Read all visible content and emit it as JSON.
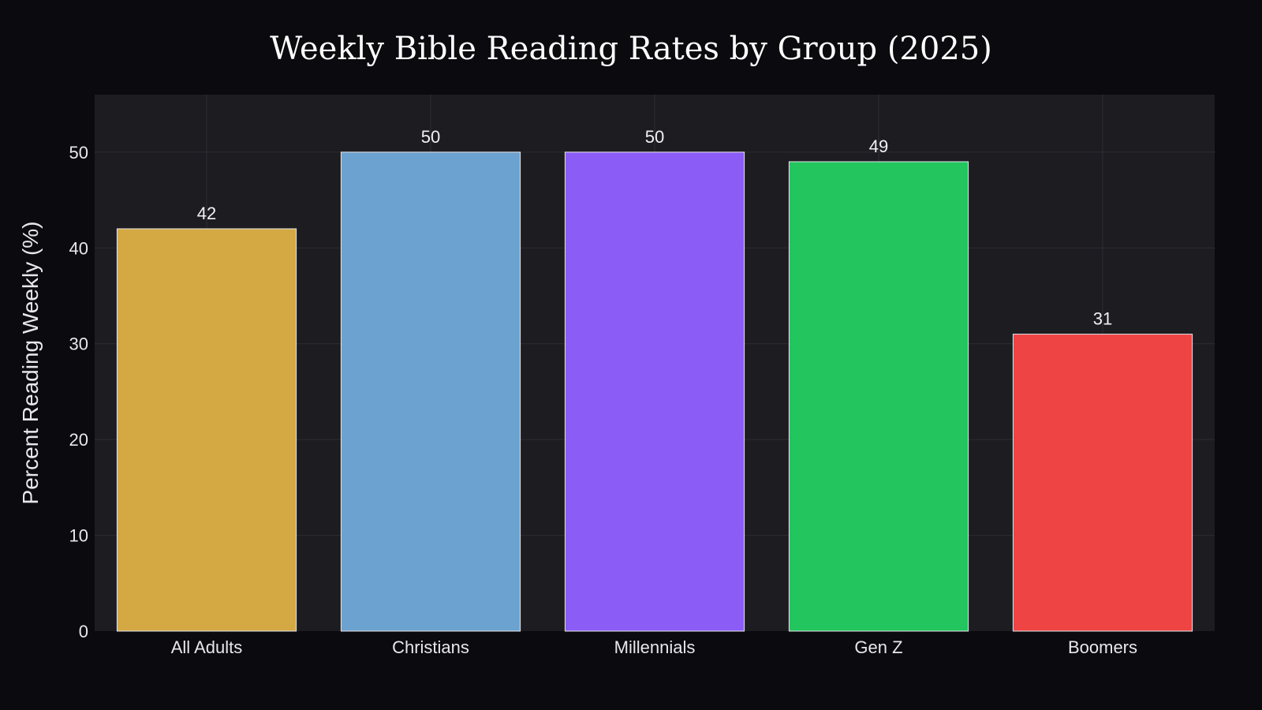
{
  "chart_data": {
    "type": "bar",
    "title": "Weekly Bible Reading Rates by Group (2025)",
    "xlabel": "",
    "ylabel": "Percent Reading Weekly (%)",
    "categories": [
      "All Adults",
      "Christians",
      "Millennials",
      "Gen Z",
      "Boomers"
    ],
    "values": [
      42,
      50,
      50,
      49,
      31
    ],
    "colors": [
      "#d4a843",
      "#6ca2cf",
      "#8b5cf6",
      "#22c55e",
      "#ef4444"
    ],
    "ylim": [
      0,
      56
    ],
    "yticks": [
      0,
      10,
      20,
      30,
      40,
      50
    ],
    "grid": true,
    "background": "#0b0b0f",
    "plot_background": "#1c1c21"
  }
}
